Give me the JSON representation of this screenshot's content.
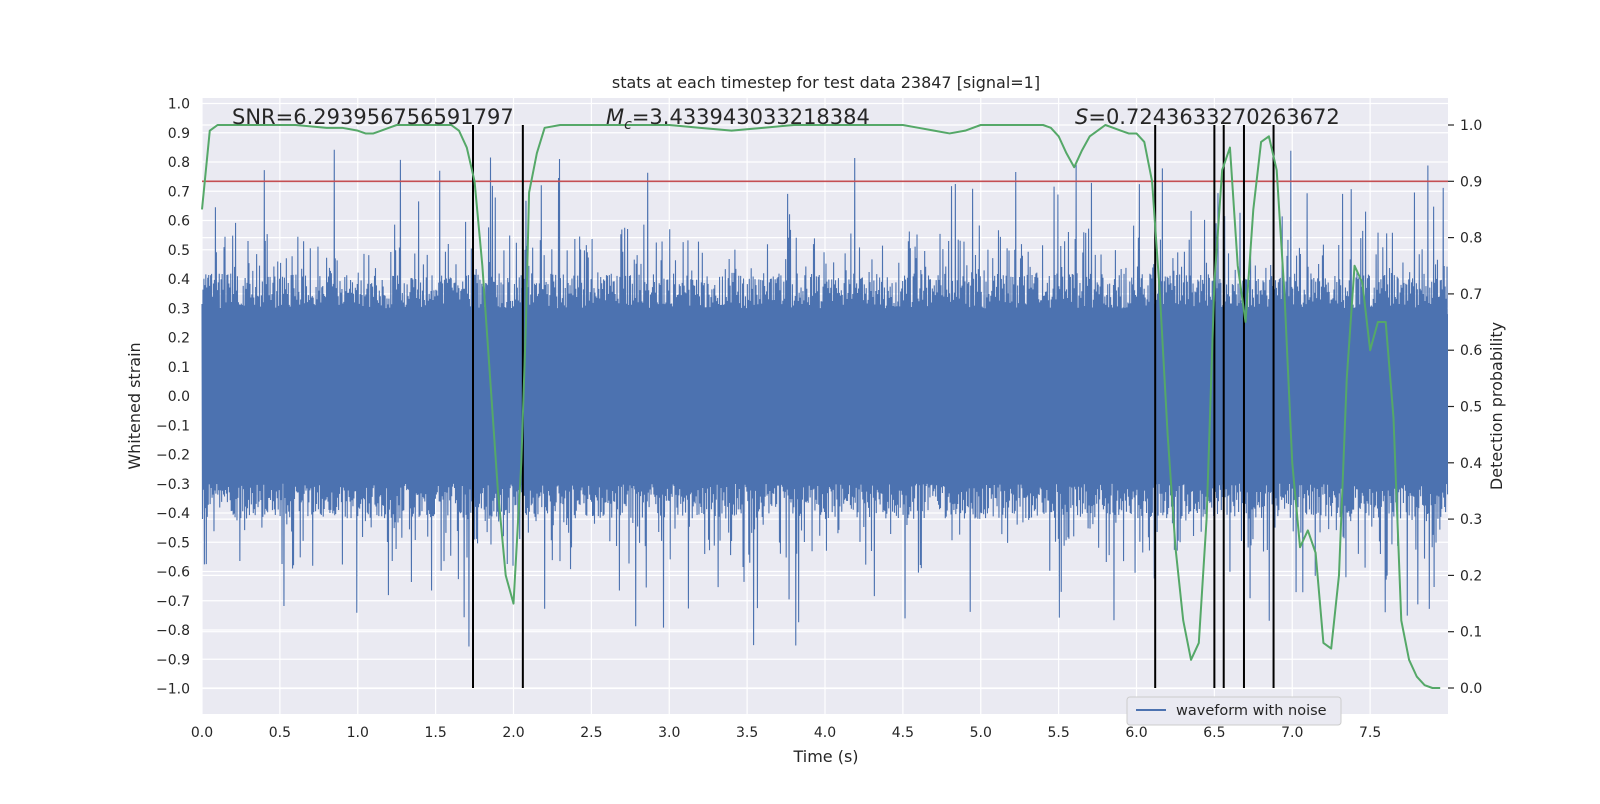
{
  "chart_data": {
    "type": "line",
    "title": "stats at each timestep for test data 23847 [signal=1]",
    "xlabel": "Time (s)",
    "ylabel_left": "Whitened strain",
    "ylabel_right": "Detection probability",
    "xlim": [
      0,
      8.0
    ],
    "ylim_left": [
      -1.0,
      1.0
    ],
    "ylim_right": [
      0.0,
      1.0
    ],
    "x_ticks": [
      "0.0",
      "0.5",
      "1.0",
      "1.5",
      "2.0",
      "2.5",
      "3.0",
      "3.5",
      "4.0",
      "4.5",
      "5.0",
      "5.5",
      "6.0",
      "6.5",
      "7.0",
      "7.5"
    ],
    "y_left_ticks": [
      "1.0",
      "0.9",
      "0.8",
      "0.7",
      "0.6",
      "0.5",
      "0.4",
      "0.3",
      "0.2",
      "0.1",
      "0.0",
      "−0.1",
      "−0.2",
      "−0.3",
      "−0.4",
      "−0.5",
      "−0.6",
      "−0.7",
      "−0.8",
      "−0.9",
      "−1.0"
    ],
    "y_right_ticks": [
      "1.0",
      "0.9",
      "0.8",
      "0.7",
      "0.6",
      "0.5",
      "0.4",
      "0.3",
      "0.2",
      "0.1",
      "0.0"
    ],
    "annotations": {
      "snr": "SNR=6.293956756591797",
      "mc_symbol": "M",
      "mc_sub": "c",
      "mc_value": "=3.433943033218384",
      "s_symbol": "S",
      "s_value": "=0.7243633270263672"
    },
    "legend": [
      {
        "label": "waveform with noise",
        "color": "#4c72b0"
      }
    ],
    "threshold": {
      "value": 0.9,
      "axis": "right",
      "color": "#c44e52"
    },
    "vertical_lines": [
      1.74,
      2.06,
      6.12,
      6.5,
      6.56,
      6.69,
      6.88
    ],
    "detection_probability": {
      "color": "#55a868",
      "x": [
        0.0,
        0.05,
        0.1,
        0.2,
        0.4,
        0.6,
        0.8,
        0.9,
        1.0,
        1.05,
        1.1,
        1.15,
        1.2,
        1.25,
        1.3,
        1.4,
        1.5,
        1.6,
        1.65,
        1.7,
        1.75,
        1.8,
        1.85,
        1.9,
        1.95,
        2.0,
        2.05,
        2.08,
        2.1,
        2.15,
        2.2,
        2.3,
        2.4,
        2.6,
        2.8,
        3.0,
        3.2,
        3.4,
        3.6,
        3.8,
        4.0,
        4.2,
        4.4,
        4.5,
        4.6,
        4.7,
        4.8,
        4.9,
        5.0,
        5.2,
        5.4,
        5.45,
        5.5,
        5.55,
        5.6,
        5.65,
        5.7,
        5.75,
        5.8,
        5.85,
        5.9,
        5.95,
        6.0,
        6.05,
        6.1,
        6.15,
        6.2,
        6.25,
        6.3,
        6.35,
        6.4,
        6.45,
        6.5,
        6.55,
        6.6,
        6.65,
        6.7,
        6.75,
        6.8,
        6.85,
        6.9,
        6.95,
        7.0,
        7.05,
        7.1,
        7.15,
        7.2,
        7.25,
        7.3,
        7.35,
        7.4,
        7.45,
        7.5,
        7.55,
        7.6,
        7.65,
        7.7,
        7.75,
        7.8,
        7.85,
        7.9,
        7.95
      ],
      "values": [
        0.85,
        0.99,
        1.0,
        1.0,
        1.0,
        1.0,
        0.995,
        0.995,
        0.99,
        0.985,
        0.985,
        0.99,
        0.995,
        1.0,
        1.0,
        1.0,
        1.0,
        1.0,
        0.99,
        0.96,
        0.9,
        0.75,
        0.55,
        0.35,
        0.2,
        0.15,
        0.4,
        0.65,
        0.88,
        0.95,
        0.995,
        1.0,
        1.0,
        1.0,
        1.0,
        1.0,
        0.995,
        0.99,
        0.995,
        1.0,
        1.0,
        1.0,
        1.0,
        1.0,
        0.995,
        0.99,
        0.985,
        0.99,
        1.0,
        1.0,
        1.0,
        0.995,
        0.98,
        0.95,
        0.925,
        0.955,
        0.98,
        0.99,
        1.0,
        0.995,
        0.99,
        0.985,
        0.985,
        0.97,
        0.9,
        0.7,
        0.45,
        0.25,
        0.12,
        0.05,
        0.08,
        0.3,
        0.72,
        0.92,
        0.96,
        0.75,
        0.65,
        0.85,
        0.97,
        0.98,
        0.92,
        0.7,
        0.4,
        0.25,
        0.28,
        0.24,
        0.08,
        0.07,
        0.2,
        0.55,
        0.75,
        0.72,
        0.6,
        0.65,
        0.65,
        0.48,
        0.12,
        0.05,
        0.02,
        0.005,
        0.0,
        0.0
      ]
    }
  }
}
